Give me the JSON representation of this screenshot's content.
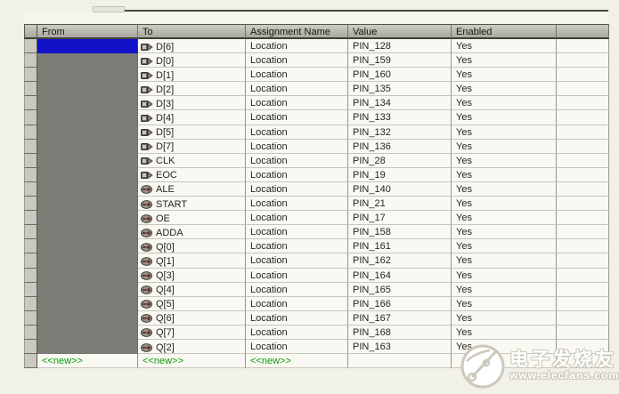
{
  "table": {
    "columns": [
      {
        "label": "From"
      },
      {
        "label": "To"
      },
      {
        "label": "Assignment Name"
      },
      {
        "label": "Value"
      },
      {
        "label": "Enabled"
      },
      {
        "label": ""
      }
    ],
    "rows": [
      {
        "from": "",
        "to": "D[6]",
        "icon": "input-pin",
        "assignment": "Location",
        "value": "PIN_128",
        "enabled": "Yes",
        "selected": true
      },
      {
        "from": "",
        "to": "D[0]",
        "icon": "input-pin",
        "assignment": "Location",
        "value": "PIN_159",
        "enabled": "Yes"
      },
      {
        "from": "",
        "to": "D[1]",
        "icon": "input-pin",
        "assignment": "Location",
        "value": "PIN_160",
        "enabled": "Yes"
      },
      {
        "from": "",
        "to": "D[2]",
        "icon": "input-pin",
        "assignment": "Location",
        "value": "PIN_135",
        "enabled": "Yes"
      },
      {
        "from": "",
        "to": "D[3]",
        "icon": "input-pin",
        "assignment": "Location",
        "value": "PIN_134",
        "enabled": "Yes"
      },
      {
        "from": "",
        "to": "D[4]",
        "icon": "input-pin",
        "assignment": "Location",
        "value": "PIN_133",
        "enabled": "Yes"
      },
      {
        "from": "",
        "to": "D[5]",
        "icon": "input-pin",
        "assignment": "Location",
        "value": "PIN_132",
        "enabled": "Yes"
      },
      {
        "from": "",
        "to": "D[7]",
        "icon": "input-pin",
        "assignment": "Location",
        "value": "PIN_136",
        "enabled": "Yes"
      },
      {
        "from": "",
        "to": "CLK",
        "icon": "input-pin",
        "assignment": "Location",
        "value": "PIN_28",
        "enabled": "Yes"
      },
      {
        "from": "",
        "to": "EOC",
        "icon": "input-pin",
        "assignment": "Location",
        "value": "PIN_19",
        "enabled": "Yes"
      },
      {
        "from": "",
        "to": "ALE",
        "icon": "output-pin",
        "assignment": "Location",
        "value": "PIN_140",
        "enabled": "Yes"
      },
      {
        "from": "",
        "to": "START",
        "icon": "output-pin",
        "assignment": "Location",
        "value": "PIN_21",
        "enabled": "Yes"
      },
      {
        "from": "",
        "to": "OE",
        "icon": "output-pin",
        "assignment": "Location",
        "value": "PIN_17",
        "enabled": "Yes"
      },
      {
        "from": "",
        "to": "ADDA",
        "icon": "output-pin",
        "assignment": "Location",
        "value": "PIN_158",
        "enabled": "Yes"
      },
      {
        "from": "",
        "to": "Q[0]",
        "icon": "output-pin",
        "assignment": "Location",
        "value": "PIN_161",
        "enabled": "Yes"
      },
      {
        "from": "",
        "to": "Q[1]",
        "icon": "output-pin",
        "assignment": "Location",
        "value": "PIN_162",
        "enabled": "Yes"
      },
      {
        "from": "",
        "to": "Q[3]",
        "icon": "output-pin",
        "assignment": "Location",
        "value": "PIN_164",
        "enabled": "Yes"
      },
      {
        "from": "",
        "to": "Q[4]",
        "icon": "output-pin",
        "assignment": "Location",
        "value": "PIN_165",
        "enabled": "Yes"
      },
      {
        "from": "",
        "to": "Q[5]",
        "icon": "output-pin",
        "assignment": "Location",
        "value": "PIN_166",
        "enabled": "Yes"
      },
      {
        "from": "",
        "to": "Q[6]",
        "icon": "output-pin",
        "assignment": "Location",
        "value": "PIN_167",
        "enabled": "Yes"
      },
      {
        "from": "",
        "to": "Q[7]",
        "icon": "output-pin",
        "assignment": "Location",
        "value": "PIN_168",
        "enabled": "Yes"
      },
      {
        "from": "",
        "to": "Q[2]",
        "icon": "output-pin",
        "assignment": "Location",
        "value": "PIN_163",
        "enabled": "Yes"
      }
    ],
    "new_row_label": "<<new>>"
  },
  "colors": {
    "selected_cell": "#1212c9",
    "from_column_block": "#7d7d78",
    "new_row_text": "#0a9a0a",
    "header_bg": "#b8b8b0"
  },
  "watermark": {
    "brand_text": "电子发烧友",
    "site_text": "www.elecfans.com"
  }
}
